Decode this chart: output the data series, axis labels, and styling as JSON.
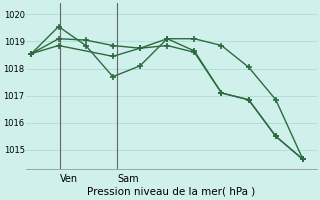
{
  "title": "Pression niveau de la mer( hPa )",
  "background_color": "#cff0eb",
  "grid_color": "#aaddd6",
  "line_color": "#2d6a3f",
  "vline_color": "#666666",
  "ylim": [
    1014.3,
    1020.4
  ],
  "yticks": [
    1015,
    1016,
    1017,
    1018,
    1019,
    1020
  ],
  "xlim": [
    -0.2,
    10.5
  ],
  "ven_x": 1.05,
  "sam_x": 3.15,
  "series1_x": [
    0,
    1,
    2,
    3,
    4,
    5,
    6,
    7,
    8,
    9,
    10
  ],
  "series1_y": [
    1018.55,
    1019.1,
    1019.05,
    1018.85,
    1018.75,
    1019.1,
    1019.1,
    1018.85,
    1018.05,
    1016.85,
    1014.65
  ],
  "series2_x": [
    0,
    1,
    2,
    3,
    4,
    5,
    6,
    7,
    8,
    9,
    10
  ],
  "series2_y": [
    1018.55,
    1019.55,
    1018.85,
    1017.7,
    1018.1,
    1019.1,
    1018.65,
    1017.1,
    1016.85,
    1015.5,
    1014.65
  ],
  "series3_x": [
    0,
    1,
    3,
    4,
    5,
    6,
    7,
    8,
    9,
    10
  ],
  "series3_y": [
    1018.55,
    1018.85,
    1018.45,
    1018.75,
    1018.85,
    1018.6,
    1017.1,
    1016.85,
    1015.5,
    1014.65
  ],
  "xlabel_ven": "Ven",
  "xlabel_sam": "Sam",
  "ylabel_fontsize": 6,
  "xlabel_fontsize": 7,
  "title_fontsize": 7.5,
  "lw": 1.0,
  "marker_size": 4.5
}
